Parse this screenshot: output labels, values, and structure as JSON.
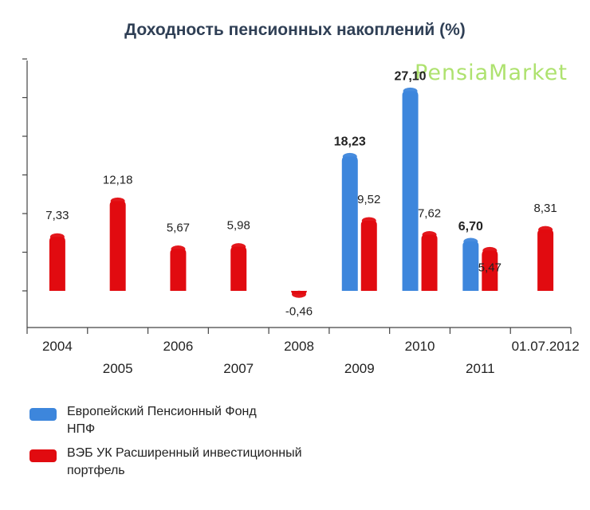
{
  "chart_data": {
    "type": "bar",
    "title": "Доходность пенсионных накоплений (%)",
    "watermark": "PensiaMarket",
    "categories": [
      "2004",
      "2005",
      "2006",
      "2007",
      "2008",
      "2009",
      "2010",
      "2011",
      "01.07.2012"
    ],
    "ylim": [
      -5,
      30
    ],
    "grid": false,
    "legend_position": "bottom-left",
    "series": [
      {
        "name": "Европейский Пенсионный Фонд НПФ",
        "name_lines": [
          "Европейский Пенсионный Фонд",
          "НПФ"
        ],
        "color": "#3d86dc",
        "values": [
          null,
          null,
          null,
          null,
          null,
          18.23,
          27.1,
          6.7,
          null
        ],
        "labels": [
          "",
          "",
          "",
          "",
          "",
          "18,23",
          "27,10",
          "6,70",
          ""
        ]
      },
      {
        "name": "ВЭБ УК Расширенный инвестиционный портфель",
        "name_lines": [
          "ВЭБ УК Расширенный инвестиционный",
          "портфель"
        ],
        "color": "#e10b10",
        "values": [
          7.33,
          12.18,
          5.67,
          5.98,
          -0.46,
          9.52,
          7.62,
          5.47,
          8.31
        ],
        "labels": [
          "7,33",
          "12,18",
          "5,67",
          "5,98",
          "-0,46",
          "9,52",
          "7,62",
          "5,47",
          "8,31"
        ]
      }
    ]
  }
}
